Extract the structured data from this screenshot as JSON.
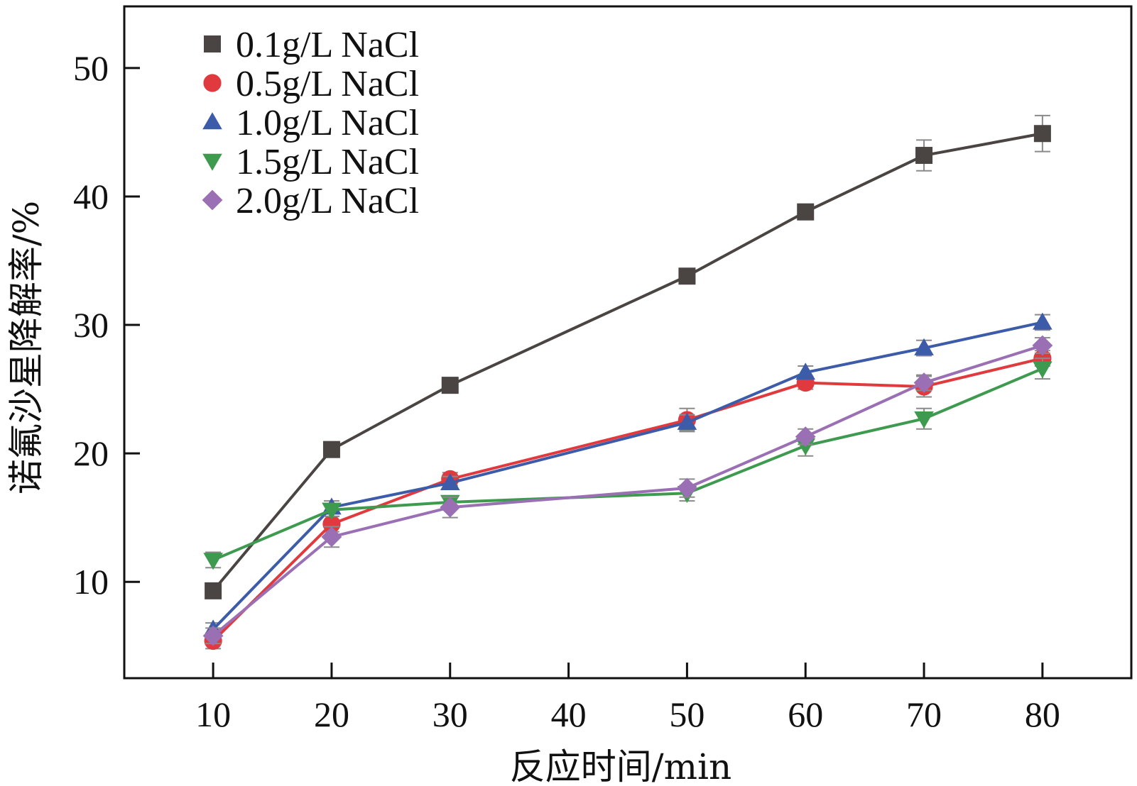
{
  "chart_data": {
    "type": "line",
    "title": "",
    "xlabel": "反应时间/min",
    "ylabel": "诺氟沙星降解率/%",
    "x": [
      10,
      20,
      30,
      50,
      60,
      70,
      80
    ],
    "xlim": [
      2.5,
      87.5
    ],
    "ylim": [
      2.5,
      54.8
    ],
    "x_ticks": [
      10,
      20,
      30,
      40,
      50,
      60,
      70,
      80
    ],
    "y_ticks": [
      10,
      20,
      30,
      40,
      50
    ],
    "grid": false,
    "legend_position": "top-left",
    "series": [
      {
        "name": "0.1g/L NaCl",
        "marker": "square",
        "color": "#4a4442",
        "values": [
          9.3,
          20.3,
          25.3,
          33.8,
          38.8,
          43.2,
          44.9
        ],
        "errors": [
          0.5,
          0.6,
          0.6,
          0.3,
          0.6,
          1.2,
          1.4
        ]
      },
      {
        "name": "0.5g/L NaCl",
        "marker": "circle",
        "color": "#e03a3e",
        "values": [
          5.4,
          14.5,
          18.0,
          22.6,
          25.5,
          25.2,
          27.4
        ],
        "errors": [
          0.6,
          0.6,
          0.5,
          0.9,
          0.5,
          0.8,
          0.6
        ]
      },
      {
        "name": "1.0g/L NaCl",
        "marker": "triangle-up",
        "color": "#3c5ba8",
        "values": [
          6.3,
          15.8,
          17.7,
          22.4,
          26.3,
          28.2,
          30.2
        ],
        "errors": [
          0.5,
          0.5,
          0.5,
          0.6,
          0.5,
          0.6,
          0.6
        ]
      },
      {
        "name": "1.5g/L NaCl",
        "marker": "triangle-down",
        "color": "#3e9a4e",
        "values": [
          11.7,
          15.6,
          16.2,
          16.9,
          20.6,
          22.7,
          26.6
        ],
        "errors": [
          0.6,
          0.5,
          0.5,
          0.6,
          0.8,
          0.8,
          0.8
        ]
      },
      {
        "name": "2.0g/L NaCl",
        "marker": "diamond",
        "color": "#9a6fb4",
        "values": [
          5.8,
          13.5,
          15.8,
          17.3,
          21.3,
          25.5,
          28.4
        ],
        "errors": [
          0.6,
          0.8,
          0.8,
          0.7,
          0.6,
          0.6,
          0.6
        ]
      }
    ]
  }
}
